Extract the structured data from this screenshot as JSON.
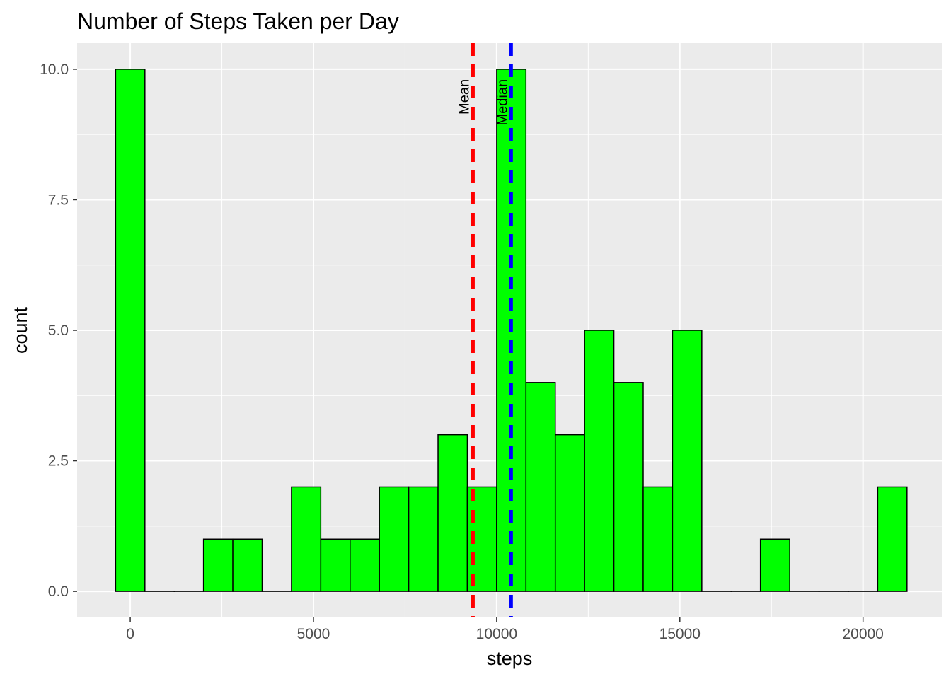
{
  "chart_data": {
    "type": "bar",
    "title": "Number of Steps Taken per Day",
    "xlabel": "steps",
    "ylabel": "count",
    "xlim": [
      -1450,
      22150
    ],
    "ylim": [
      -0.5,
      10.5
    ],
    "x_ticks": [
      0,
      5000,
      10000,
      15000,
      20000
    ],
    "x_tick_labels": [
      "0",
      "5000",
      "10000",
      "15000",
      "20000"
    ],
    "y_ticks": [
      0.0,
      2.5,
      5.0,
      7.5,
      10.0
    ],
    "y_tick_labels": [
      "0.0",
      "2.5",
      "5.0",
      "7.5",
      "10.0"
    ],
    "bin_width": 800,
    "bins": [
      {
        "center": 0,
        "count": 10
      },
      {
        "center": 800,
        "count": 0
      },
      {
        "center": 1600,
        "count": 0
      },
      {
        "center": 2400,
        "count": 1
      },
      {
        "center": 3200,
        "count": 1
      },
      {
        "center": 4000,
        "count": 0
      },
      {
        "center": 4800,
        "count": 2
      },
      {
        "center": 5600,
        "count": 1
      },
      {
        "center": 6400,
        "count": 1
      },
      {
        "center": 7200,
        "count": 2
      },
      {
        "center": 8000,
        "count": 2
      },
      {
        "center": 8800,
        "count": 3
      },
      {
        "center": 9600,
        "count": 2
      },
      {
        "center": 10400,
        "count": 10
      },
      {
        "center": 11200,
        "count": 4
      },
      {
        "center": 12000,
        "count": 3
      },
      {
        "center": 12800,
        "count": 5
      },
      {
        "center": 13600,
        "count": 4
      },
      {
        "center": 14400,
        "count": 2
      },
      {
        "center": 15200,
        "count": 5
      },
      {
        "center": 16000,
        "count": 0
      },
      {
        "center": 16800,
        "count": 0
      },
      {
        "center": 17600,
        "count": 1
      },
      {
        "center": 18400,
        "count": 0
      },
      {
        "center": 19200,
        "count": 0
      },
      {
        "center": 20000,
        "count": 0
      },
      {
        "center": 20800,
        "count": 2
      }
    ],
    "vlines": [
      {
        "label": "Mean",
        "x": 9354,
        "color": "#ff0000"
      },
      {
        "label": "Median",
        "x": 10395,
        "color": "#0000ff"
      }
    ],
    "bar_fill": "#00ff00",
    "bar_outline": "#000000",
    "panel_background": "#ebebeb",
    "grid": true,
    "grid_color": "#ffffff",
    "legend": "none"
  }
}
